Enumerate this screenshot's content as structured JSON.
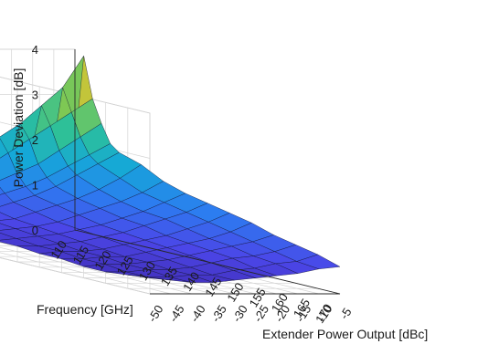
{
  "chart_data": {
    "type": "surface",
    "title": "",
    "xlabel": "Frequency [GHz]",
    "ylabel": "Extender Power Output [dBc]",
    "zlabel": "Power Deviation [dB]",
    "x_ticks": [
      "110",
      "115",
      "120",
      "125",
      "130",
      "135",
      "140",
      "145",
      "150",
      "155",
      "160",
      "165",
      "170"
    ],
    "y_ticks": [
      "-50",
      "-45",
      "-40",
      "-35",
      "-30",
      "-25",
      "-20",
      "-15",
      "-10",
      "-5"
    ],
    "z_ticks": [
      "0",
      "1",
      "2",
      "3",
      "4"
    ],
    "xlim": [
      110,
      170
    ],
    "ylim": [
      -50,
      -5
    ],
    "zlim": [
      0,
      4
    ],
    "grid": true,
    "colormap": [
      "#3e26a8",
      "#4b46e8",
      "#2c7cf0",
      "#15a8d8",
      "#2cc09a",
      "#8cc948",
      "#e8c230",
      "#f9fb15"
    ],
    "frequency": [
      110,
      112,
      114,
      116,
      118,
      120,
      125,
      130,
      135,
      140,
      145,
      150,
      155,
      160,
      165,
      170
    ],
    "extender_power": [
      -50,
      -45,
      -40,
      -35,
      -30,
      -25,
      -20,
      -15,
      -10,
      -5
    ],
    "deviation": [
      [
        0.8,
        0.85,
        0.9,
        1.0,
        1.2,
        1.4,
        1.7,
        1.9,
        1.95,
        1.9
      ],
      [
        1.2,
        1.3,
        1.4,
        1.6,
        1.8,
        2.1,
        2.4,
        2.8,
        3.2,
        3.9
      ],
      [
        0.9,
        1.0,
        1.1,
        1.3,
        1.5,
        1.8,
        2.1,
        2.4,
        2.7,
        3.0
      ],
      [
        0.7,
        0.8,
        0.9,
        1.0,
        1.2,
        1.4,
        1.6,
        1.9,
        2.2,
        2.5
      ],
      [
        0.6,
        0.65,
        0.75,
        0.85,
        1.0,
        1.15,
        1.35,
        1.6,
        1.85,
        2.1
      ],
      [
        0.5,
        0.55,
        0.6,
        0.7,
        0.85,
        1.0,
        1.2,
        1.45,
        1.7,
        1.95
      ],
      [
        0.45,
        0.5,
        0.55,
        0.6,
        0.75,
        0.9,
        1.05,
        1.25,
        1.5,
        1.8
      ],
      [
        0.4,
        0.45,
        0.5,
        0.55,
        0.65,
        0.8,
        0.95,
        1.1,
        1.3,
        1.55
      ],
      [
        0.35,
        0.4,
        0.45,
        0.5,
        0.6,
        0.7,
        0.85,
        1.0,
        1.2,
        1.4
      ],
      [
        0.35,
        0.35,
        0.4,
        0.45,
        0.55,
        0.65,
        0.8,
        0.95,
        1.1,
        1.3
      ],
      [
        0.3,
        0.35,
        0.35,
        0.4,
        0.5,
        0.6,
        0.7,
        0.85,
        1.0,
        1.2
      ],
      [
        0.3,
        0.3,
        0.35,
        0.35,
        0.45,
        0.55,
        0.65,
        0.75,
        0.9,
        1.1
      ],
      [
        0.25,
        0.3,
        0.3,
        0.35,
        0.4,
        0.5,
        0.6,
        0.7,
        0.8,
        0.95
      ],
      [
        0.25,
        0.25,
        0.3,
        0.3,
        0.35,
        0.45,
        0.55,
        0.6,
        0.7,
        0.85
      ],
      [
        0.3,
        0.25,
        0.25,
        0.3,
        0.3,
        0.4,
        0.45,
        0.55,
        0.6,
        0.75
      ],
      [
        0.35,
        0.3,
        0.25,
        0.25,
        0.3,
        0.35,
        0.4,
        0.45,
        0.55,
        0.6
      ]
    ]
  }
}
